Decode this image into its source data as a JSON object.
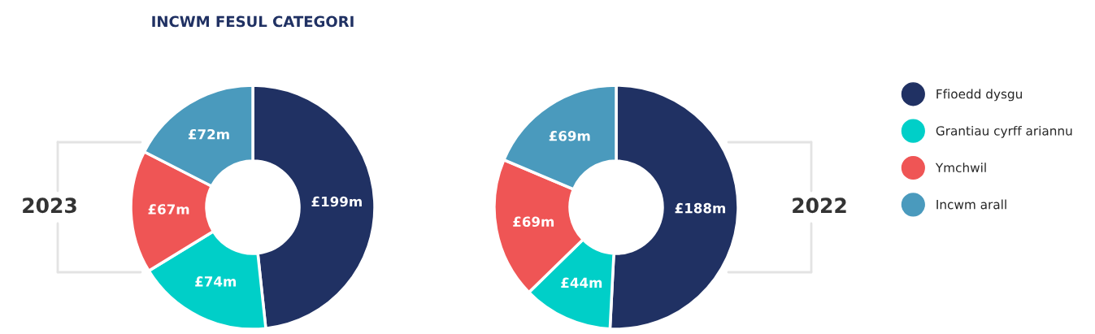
{
  "chart_data": [
    {
      "type": "donut",
      "title": "INCWM FESUL CATEGORI",
      "subtitle": "2023",
      "categories": [
        "Ffioedd dysgu",
        "Grantiau cyrff ariannu",
        "Ymchwil",
        "Incwm arall"
      ],
      "values": [
        199,
        74,
        67,
        72
      ],
      "value_labels": [
        "£199m",
        "£74m",
        "£67m",
        "£72m"
      ],
      "colors": [
        "#203163",
        "#00cfc8",
        "#ef5555",
        "#4a9abd"
      ],
      "legend": "right"
    },
    {
      "type": "donut",
      "subtitle": "2022",
      "categories": [
        null,
        null,
        null,
        null
      ],
      "values": [
        188,
        44,
        69,
        69
      ],
      "value_labels": [
        "£188m",
        "£44m",
        "£69m",
        "£69m"
      ],
      "colors": [
        "#203163",
        "#00cfc8",
        "#ef5555",
        "#4a9abd"
      ]
    }
  ]
}
